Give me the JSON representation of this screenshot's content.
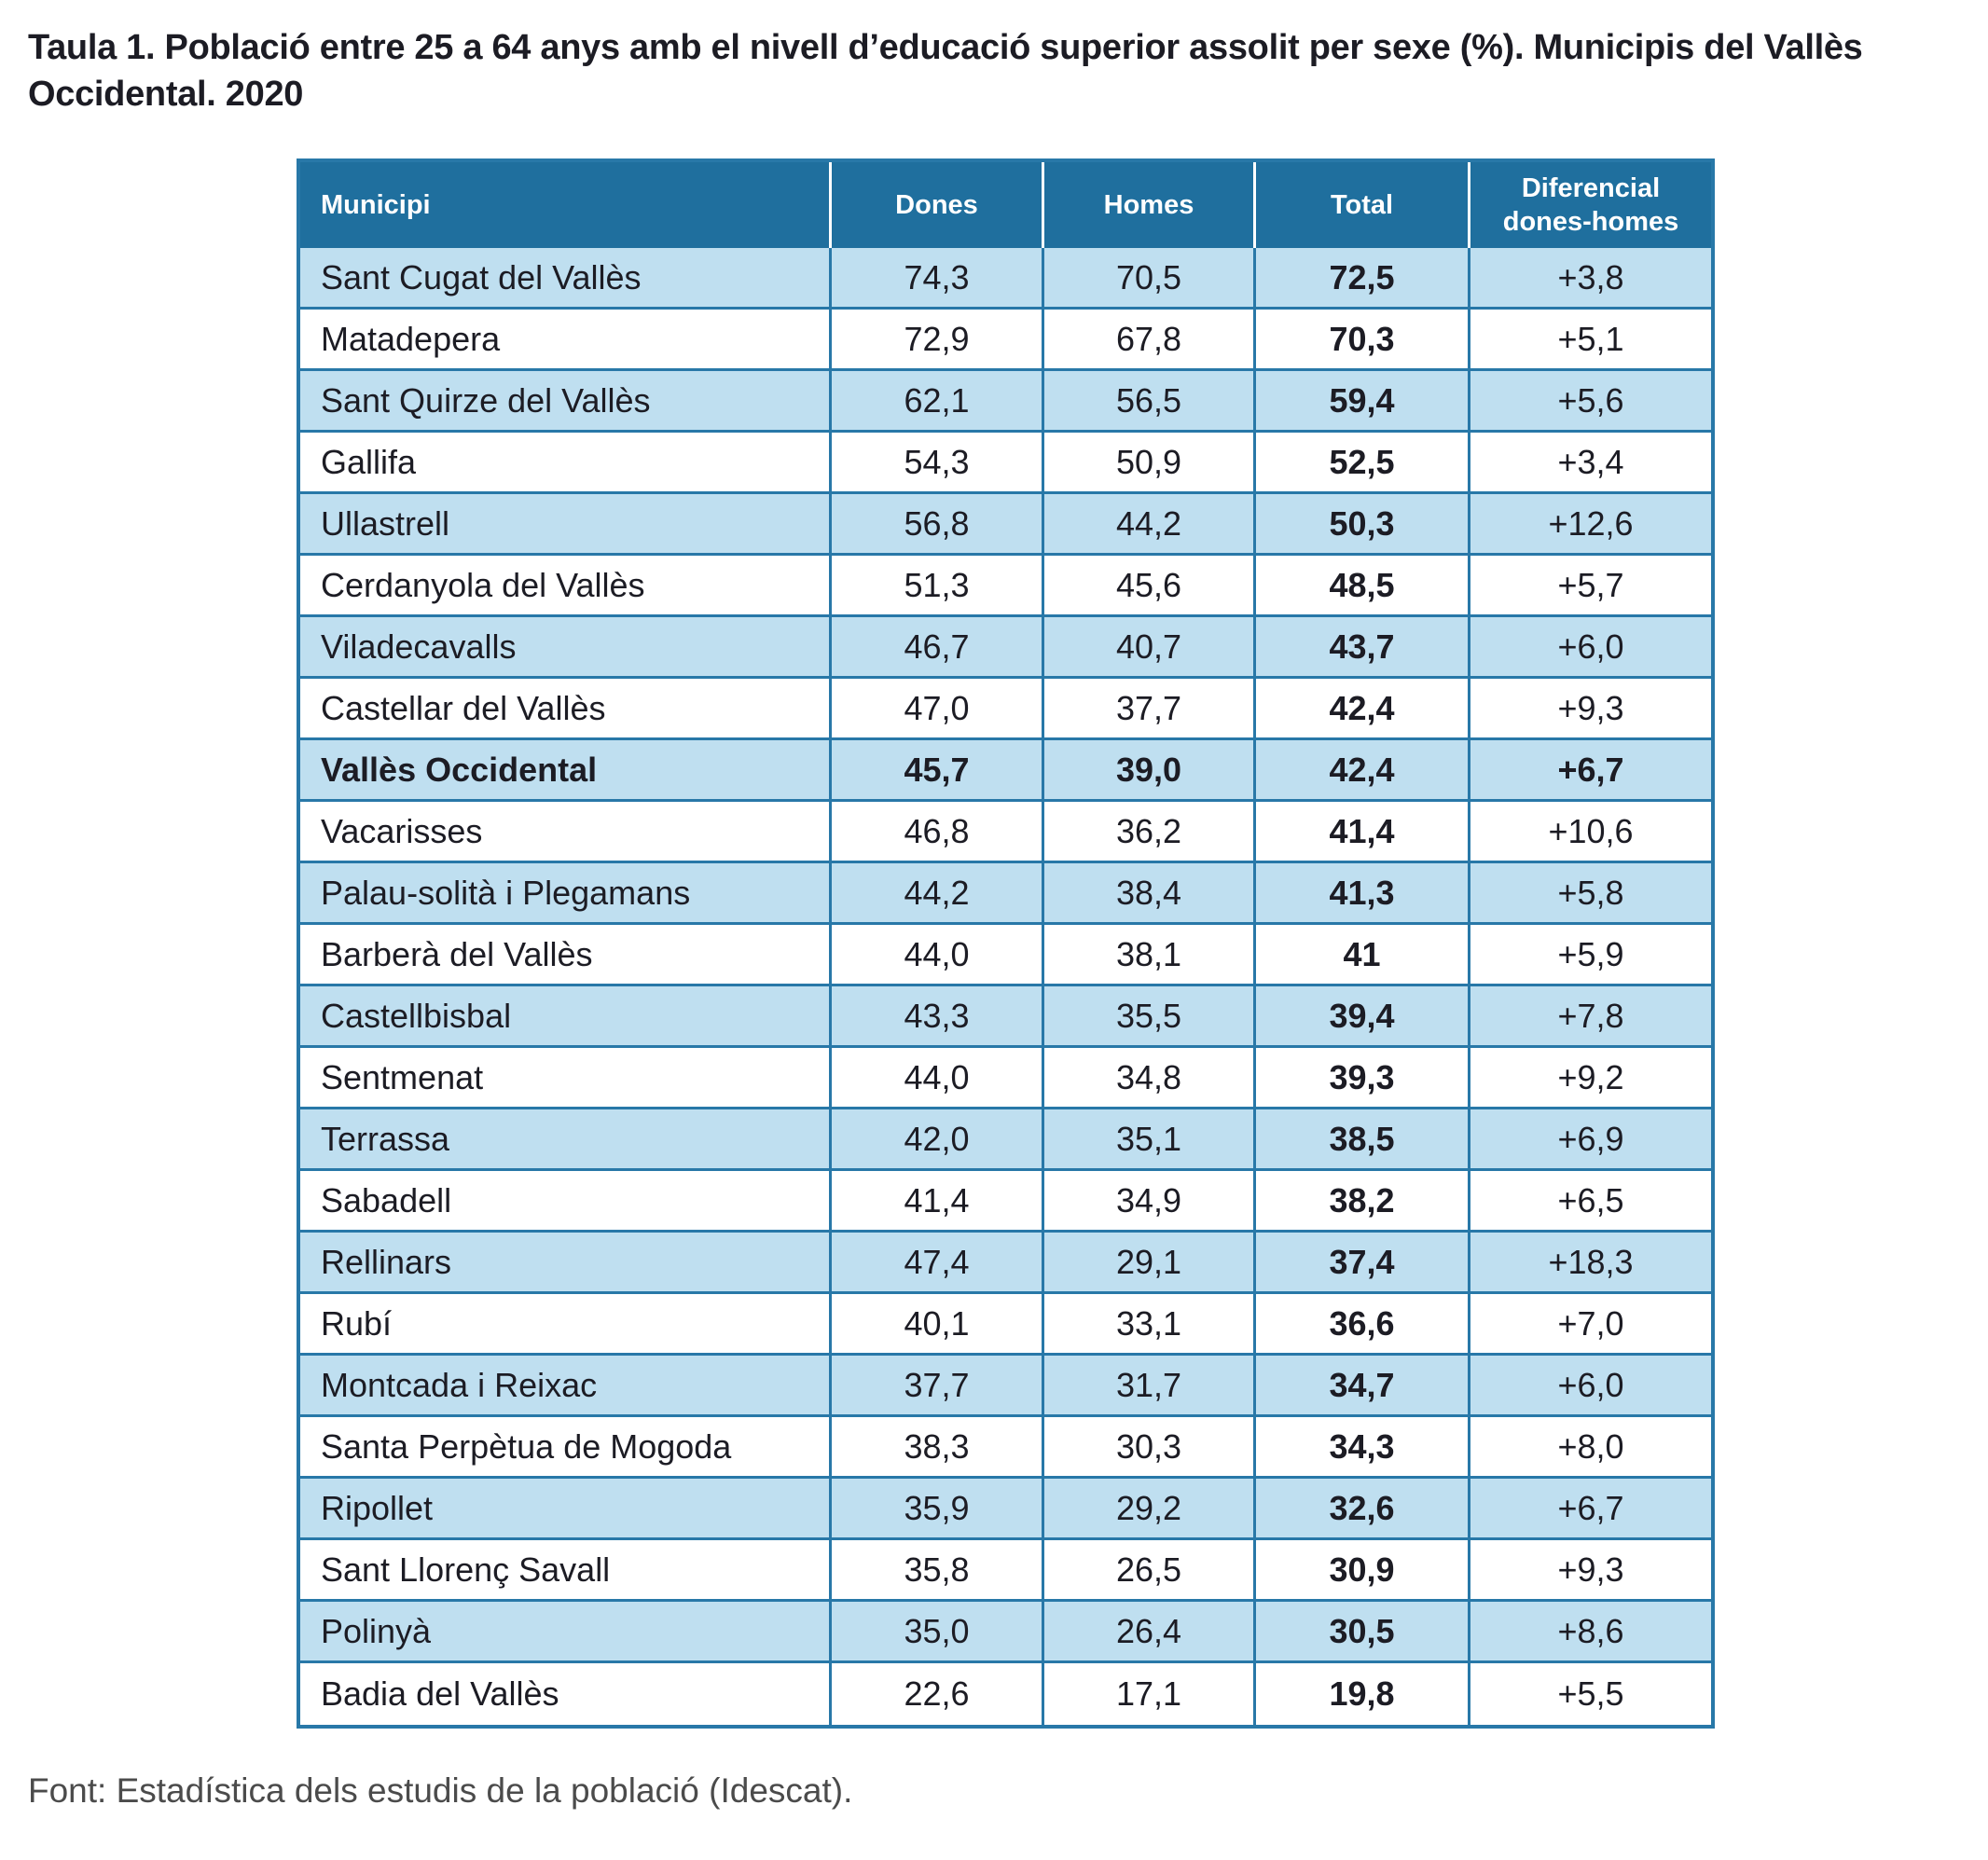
{
  "title": "Taula 1. Població entre 25 a 64 anys amb el nivell d’educació superior assolit per sexe (%). Municipis del Vallès Occidental. 2020",
  "table": {
    "columns": [
      "Municipi",
      "Dones",
      "Homes",
      "Total",
      "Diferencial dones-homes"
    ],
    "rows": [
      {
        "municipi": "Sant Cugat del Vallès",
        "dones": "74,3",
        "homes": "70,5",
        "total": "72,5",
        "diferencial": "+3,8"
      },
      {
        "municipi": "Matadepera",
        "dones": "72,9",
        "homes": "67,8",
        "total": "70,3",
        "diferencial": "+5,1"
      },
      {
        "municipi": "Sant Quirze del Vallès",
        "dones": "62,1",
        "homes": "56,5",
        "total": "59,4",
        "diferencial": "+5,6"
      },
      {
        "municipi": "Gallifa",
        "dones": "54,3",
        "homes": "50,9",
        "total": "52,5",
        "diferencial": "+3,4"
      },
      {
        "municipi": "Ullastrell",
        "dones": "56,8",
        "homes": "44,2",
        "total": "50,3",
        "diferencial": "+12,6"
      },
      {
        "municipi": "Cerdanyola del Vallès",
        "dones": "51,3",
        "homes": "45,6",
        "total": "48,5",
        "diferencial": "+5,7"
      },
      {
        "municipi": "Viladecavalls",
        "dones": "46,7",
        "homes": "40,7",
        "total": "43,7",
        "diferencial": "+6,0"
      },
      {
        "municipi": "Castellar del Vallès",
        "dones": "47,0",
        "homes": "37,7",
        "total": "42,4",
        "diferencial": "+9,3"
      },
      {
        "municipi": "Vallès Occidental",
        "dones": "45,7",
        "homes": "39,0",
        "total": "42,4",
        "diferencial": "+6,7",
        "emphasis": true
      },
      {
        "municipi": "Vacarisses",
        "dones": "46,8",
        "homes": "36,2",
        "total": "41,4",
        "diferencial": "+10,6"
      },
      {
        "municipi": "Palau-solità i Plegamans",
        "dones": "44,2",
        "homes": "38,4",
        "total": "41,3",
        "diferencial": "+5,8"
      },
      {
        "municipi": "Barberà del Vallès",
        "dones": "44,0",
        "homes": "38,1",
        "total": "41",
        "diferencial": "+5,9"
      },
      {
        "municipi": "Castellbisbal",
        "dones": "43,3",
        "homes": "35,5",
        "total": "39,4",
        "diferencial": "+7,8"
      },
      {
        "municipi": "Sentmenat",
        "dones": "44,0",
        "homes": "34,8",
        "total": "39,3",
        "diferencial": "+9,2"
      },
      {
        "municipi": "Terrassa",
        "dones": "42,0",
        "homes": "35,1",
        "total": "38,5",
        "diferencial": "+6,9"
      },
      {
        "municipi": "Sabadell",
        "dones": "41,4",
        "homes": "34,9",
        "total": "38,2",
        "diferencial": "+6,5"
      },
      {
        "municipi": "Rellinars",
        "dones": "47,4",
        "homes": "29,1",
        "total": "37,4",
        "diferencial": "+18,3"
      },
      {
        "municipi": "Rubí",
        "dones": "40,1",
        "homes": "33,1",
        "total": "36,6",
        "diferencial": "+7,0"
      },
      {
        "municipi": "Montcada i Reixac",
        "dones": "37,7",
        "homes": "31,7",
        "total": "34,7",
        "diferencial": "+6,0"
      },
      {
        "municipi": "Santa Perpètua de Mogoda",
        "dones": "38,3",
        "homes": "30,3",
        "total": "34,3",
        "diferencial": "+8,0"
      },
      {
        "municipi": "Ripollet",
        "dones": "35,9",
        "homes": "29,2",
        "total": "32,6",
        "diferencial": "+6,7"
      },
      {
        "municipi": "Sant Llorenç Savall",
        "dones": "35,8",
        "homes": "26,5",
        "total": "30,9",
        "diferencial": "+9,3"
      },
      {
        "municipi": "Polinyà",
        "dones": "35,0",
        "homes": "26,4",
        "total": "30,5",
        "diferencial": "+8,6"
      },
      {
        "municipi": "Badia del Vallès",
        "dones": "22,6",
        "homes": "17,1",
        "total": "19,8",
        "diferencial": "+5,5"
      }
    ]
  },
  "footer": "Font: Estadística dels estudis de la població (Idescat).",
  "colors": {
    "header_bg": "#1f6f9e",
    "row_alt_bg": "#bfdff0",
    "grid_border": "#2878a8",
    "header_text": "#ffffff",
    "body_text": "#1c1c24",
    "note_text": "#4b4b4b"
  }
}
